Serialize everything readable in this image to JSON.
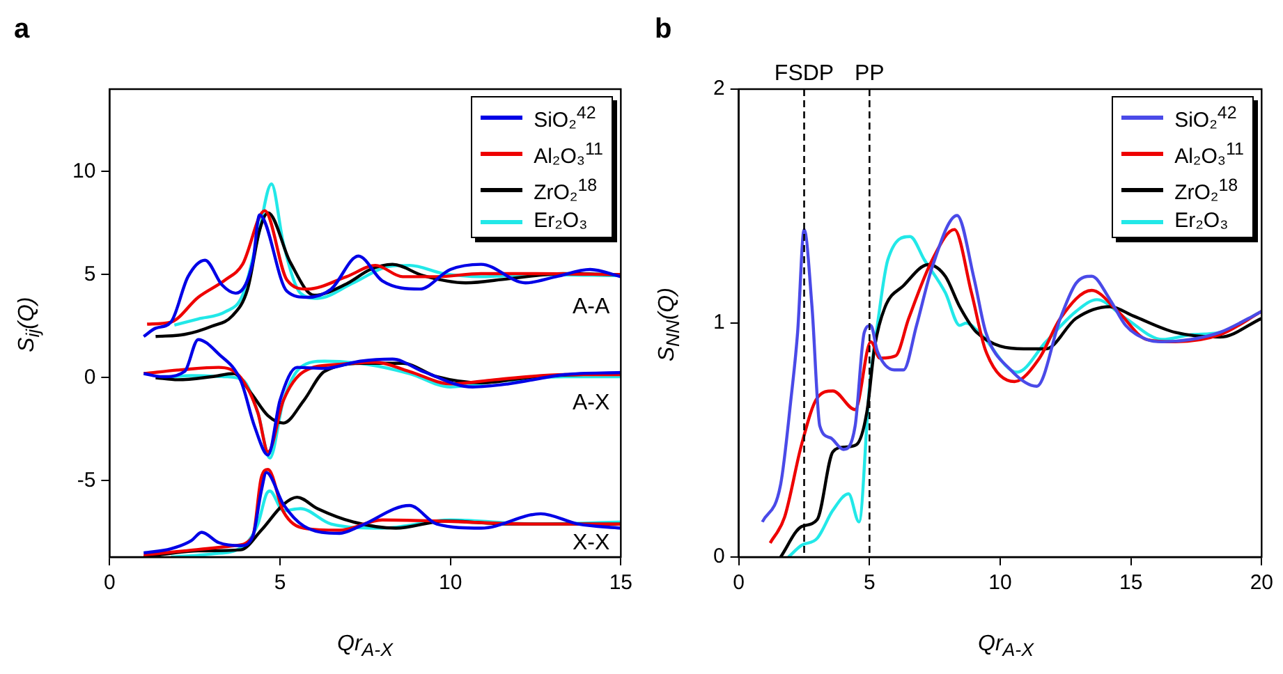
{
  "chart_data": [
    {
      "type": "line",
      "title": "a",
      "xlabel": "Qr$_{A-X}$",
      "ylabel": "S$_{ij}$(Q)",
      "xlim": [
        0,
        15
      ],
      "ylim": [
        -8.7,
        14
      ],
      "xticks": [
        0,
        5,
        10,
        15
      ],
      "yticks": [
        -5,
        0,
        5,
        10
      ],
      "legend": "top right",
      "marker": "none",
      "line_style": "solid",
      "grid": false,
      "annotations": [
        "A-A",
        "A-X",
        "X-X"
      ],
      "series": [
        {
          "name": "SiO₂$^{42}$",
          "color": "#0000e6",
          "x": [
            1.0,
            1.35,
            1.8,
            2.3,
            2.8,
            3.3,
            3.7,
            4.2,
            4.4,
            5.2,
            5.8,
            6.5,
            7.3,
            8.0,
            9.1,
            10.0,
            10.9,
            12.2,
            13.1,
            14.1,
            15
          ],
          "values": [
            2.0,
            2.4,
            2.7,
            4.9,
            5.7,
            4.5,
            4.1,
            5.6,
            7.9,
            4.2,
            3.9,
            4.3,
            5.9,
            4.7,
            4.3,
            5.25,
            5.5,
            4.6,
            4.9,
            5.25,
            4.9
          ]
        },
        {
          "name": "Al₂O₃$^{11}$",
          "color": "#ee0000",
          "x": [
            1.1,
            1.8,
            2.6,
            3.4,
            3.9,
            4.55,
            5.2,
            5.8,
            6.95,
            7.8,
            8.6,
            9.6,
            10.9,
            12.5,
            15
          ],
          "values": [
            2.6,
            2.7,
            3.9,
            4.75,
            5.5,
            8.1,
            4.75,
            4.3,
            4.9,
            5.45,
            4.9,
            4.9,
            5.05,
            5.05,
            5.0
          ]
        },
        {
          "name": "ZrO₂$^{18}$",
          "color": "#000000",
          "x": [
            1.35,
            2.2,
            3.0,
            3.6,
            4.05,
            4.4,
            4.65,
            5.3,
            6.0,
            6.95,
            7.65,
            8.3,
            9.2,
            10.45,
            11.7,
            13.3,
            15
          ],
          "values": [
            2.0,
            2.1,
            2.5,
            3.0,
            4.3,
            7.15,
            8.0,
            5.6,
            4.0,
            4.55,
            5.25,
            5.5,
            4.95,
            4.6,
            4.8,
            5.05,
            5.0
          ]
        },
        {
          "name": "Er₂O₃",
          "color": "#22e8e8",
          "x": [
            1.9,
            2.6,
            3.4,
            3.9,
            4.35,
            4.75,
            5.1,
            5.6,
            6.1,
            7.15,
            8.2,
            8.8,
            9.8,
            10.9,
            12.5,
            15
          ],
          "values": [
            2.55,
            2.85,
            3.2,
            4.0,
            6.8,
            9.4,
            6.5,
            4.1,
            3.85,
            4.6,
            5.4,
            5.45,
            5.05,
            4.9,
            5.0,
            4.95
          ]
        },
        {
          "color": "#0000e6",
          "x": [
            1.0,
            1.55,
            2.2,
            2.6,
            3.2,
            3.85,
            4.25,
            4.65,
            5.0,
            5.5,
            6.3,
            7.35,
            8.3,
            9.2,
            10.65,
            11.7,
            13.35,
            15
          ],
          "values": [
            0.2,
            0.05,
            0.3,
            1.85,
            1.15,
            -0.15,
            -2.35,
            -3.75,
            -1.1,
            0.5,
            0.45,
            0.8,
            0.9,
            0.3,
            -0.45,
            -0.3,
            0.15,
            0.25
          ]
        },
        {
          "color": "#ee0000",
          "x": [
            1.0,
            2.2,
            3.2,
            3.85,
            4.35,
            4.65,
            5.1,
            5.7,
            6.75,
            7.8,
            8.8,
            10.0,
            11.3,
            13.35,
            15
          ],
          "values": [
            0.2,
            0.4,
            0.5,
            0.0,
            -1.7,
            -3.6,
            -1.1,
            0.3,
            0.65,
            0.75,
            0.3,
            -0.3,
            -0.1,
            0.15,
            0.15
          ]
        },
        {
          "color": "#000000",
          "x": [
            1.35,
            2.0,
            3.0,
            3.65,
            4.15,
            4.65,
            5.1,
            5.7,
            6.3,
            7.55,
            8.6,
            9.6,
            10.9,
            12.5,
            15
          ],
          "values": [
            0,
            -0.1,
            0.05,
            0.2,
            -0.75,
            -1.85,
            -2.2,
            -1.1,
            0.3,
            0.7,
            0.7,
            0.05,
            -0.25,
            0.05,
            0.2
          ]
        },
        {
          "color": "#22e8e8",
          "x": [
            1.55,
            2.4,
            3.4,
            3.9,
            4.35,
            4.7,
            5.1,
            5.6,
            6.3,
            7.55,
            8.8,
            10.0,
            11.3,
            13.35,
            15
          ],
          "values": [
            0,
            0.1,
            0.05,
            -0.1,
            -1.7,
            -3.9,
            -1.1,
            0.5,
            0.8,
            0.65,
            0.2,
            -0.45,
            -0.2,
            0.05,
            0.05
          ]
        },
        {
          "color": "#0000e6",
          "x": [
            1.0,
            1.8,
            2.4,
            2.7,
            3.2,
            3.85,
            4.2,
            4.45,
            4.6,
            5.1,
            5.7,
            6.75,
            7.35,
            8.8,
            9.6,
            10.9,
            12.65,
            13.75,
            15
          ],
          "values": [
            -8.5,
            -8.3,
            -7.9,
            -7.5,
            -8.0,
            -8.15,
            -7.7,
            -5.5,
            -4.6,
            -6.15,
            -7.2,
            -7.55,
            -7.2,
            -6.2,
            -7.1,
            -7.3,
            -6.6,
            -7.1,
            -7.3
          ]
        },
        {
          "color": "#ee0000",
          "x": [
            1.0,
            2.2,
            3.65,
            4.2,
            4.45,
            4.65,
            5.1,
            5.7,
            6.75,
            8.0,
            9.6,
            12.5,
            15
          ],
          "values": [
            -8.6,
            -8.4,
            -8.15,
            -7.7,
            -4.85,
            -4.45,
            -6.5,
            -7.3,
            -7.4,
            -6.9,
            -6.95,
            -7.1,
            -7.1
          ]
        },
        {
          "color": "#000000",
          "x": [
            1.0,
            2.6,
            3.85,
            4.45,
            5.1,
            5.5,
            6.1,
            7.15,
            8.4,
            9.85,
            11.7,
            15
          ],
          "values": [
            -8.7,
            -8.4,
            -8.35,
            -7.4,
            -6.15,
            -5.8,
            -6.35,
            -7.0,
            -7.3,
            -6.95,
            -7.1,
            -7.1
          ]
        },
        {
          "color": "#22e8e8",
          "x": [
            1.8,
            3.0,
            3.9,
            4.35,
            4.6,
            4.7,
            5.1,
            5.6,
            6.5,
            8.0,
            10.0,
            12.5,
            15
          ],
          "values": [
            -8.7,
            -8.55,
            -8.2,
            -7.1,
            -5.65,
            -5.5,
            -6.45,
            -6.35,
            -7.1,
            -7.3,
            -6.9,
            -7.1,
            -7.0
          ]
        }
      ]
    },
    {
      "type": "line",
      "title": "b",
      "xlabel": "Qr$_{A-X}$",
      "ylabel": "S$_{NN}$(Q)",
      "xlim": [
        0,
        20
      ],
      "ylim": [
        0,
        2
      ],
      "xticks": [
        0,
        5,
        10,
        15,
        20
      ],
      "yticks": [
        0,
        1,
        2
      ],
      "legend": "top right",
      "marker": "none",
      "line_style": "solid",
      "grid": false,
      "ref_lines": [
        {
          "axis": "x",
          "value": 2.5,
          "label": "FSDP",
          "color": "#000000",
          "line_style": "dashed"
        },
        {
          "axis": "x",
          "value": 5,
          "label": "PP",
          "color": "#000000",
          "line_style": "dashed"
        }
      ],
      "series": [
        {
          "name": "SiO₂$^{42}$",
          "color": "#4a4ae8",
          "x": [
            0.9,
            1.6,
            2.0,
            2.25,
            2.5,
            2.8,
            3.1,
            3.5,
            4.0,
            4.45,
            4.8,
            5.05,
            5.3,
            5.95,
            6.3,
            6.8,
            7.4,
            8.35,
            9.0,
            9.45,
            10.4,
            11.4,
            12.3,
            12.9,
            13.5,
            14.2,
            14.8,
            15.6,
            16.2,
            17.3,
            18.4,
            19.5,
            20
          ],
          "values": [
            0.15,
            0.31,
            0.68,
            0.96,
            1.4,
            1.07,
            0.56,
            0.51,
            0.46,
            0.56,
            0.96,
            0.99,
            0.88,
            0.8,
            0.8,
            0.99,
            1.24,
            1.46,
            1.19,
            0.96,
            0.8,
            0.73,
            1.02,
            1.17,
            1.2,
            1.1,
            0.99,
            0.93,
            0.92,
            0.93,
            0.96,
            1.02,
            1.05
          ]
        },
        {
          "name": "Al₂O₃$^{11}$",
          "color": "#ee0000",
          "x": [
            1.2,
            1.75,
            2.4,
            3.0,
            3.6,
            4.45,
            5.05,
            5.4,
            6.0,
            6.5,
            7.4,
            8.25,
            8.9,
            9.45,
            10.55,
            11.5,
            12.3,
            13.5,
            14.5,
            15.6,
            16.7,
            18.4,
            20
          ],
          "values": [
            0.06,
            0.17,
            0.48,
            0.68,
            0.71,
            0.63,
            0.92,
            0.85,
            0.86,
            1.02,
            1.27,
            1.4,
            1.13,
            0.88,
            0.75,
            0.85,
            1.02,
            1.14,
            1.05,
            0.93,
            0.92,
            0.95,
            1.05
          ]
        },
        {
          "name": "ZrO₂$^{18}$",
          "color": "#000000",
          "x": [
            1.6,
            2.4,
            3.0,
            3.6,
            4.05,
            4.5,
            4.9,
            5.2,
            5.6,
            6.3,
            7.25,
            7.9,
            8.45,
            9.1,
            10.9,
            11.75,
            12.9,
            14.2,
            15.1,
            16.7,
            18.4,
            20
          ],
          "values": [
            0.0,
            0.13,
            0.16,
            0.45,
            0.47,
            0.48,
            0.62,
            0.9,
            1.07,
            1.16,
            1.25,
            1.2,
            1.07,
            0.96,
            0.89,
            0.89,
            1.02,
            1.07,
            1.03,
            0.96,
            0.94,
            1.02
          ]
        },
        {
          "name": "Er₂O₃",
          "color": "#22e8e8",
          "x": [
            1.9,
            2.4,
            3.0,
            3.6,
            4.2,
            4.6,
            5.0,
            5.3,
            5.7,
            6.55,
            7.1,
            7.9,
            8.45,
            8.7,
            9.2,
            10.65,
            11.75,
            12.9,
            13.7,
            14.8,
            16.2,
            17.3,
            18.4,
            20
          ],
          "values": [
            0.0,
            0.05,
            0.08,
            0.2,
            0.27,
            0.15,
            0.73,
            0.99,
            1.27,
            1.37,
            1.27,
            1.13,
            0.99,
            1.0,
            0.96,
            0.79,
            0.92,
            1.05,
            1.1,
            1.02,
            0.93,
            0.95,
            0.96,
            1.05
          ]
        }
      ]
    }
  ]
}
